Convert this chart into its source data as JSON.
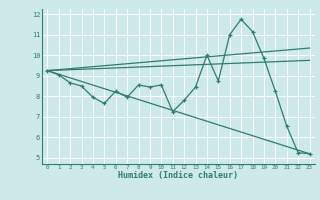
{
  "title": "",
  "xlabel": "Humidex (Indice chaleur)",
  "ylabel": "",
  "bg_color": "#cee9e9",
  "grid_color": "#ffffff",
  "line_color": "#2e7d6e",
  "xlim": [
    -0.5,
    23.5
  ],
  "ylim": [
    4.7,
    12.3
  ],
  "xticks": [
    0,
    1,
    2,
    3,
    4,
    5,
    6,
    7,
    8,
    9,
    10,
    11,
    12,
    13,
    14,
    15,
    16,
    17,
    18,
    19,
    20,
    21,
    22,
    23
  ],
  "yticks": [
    5,
    6,
    7,
    8,
    9,
    10,
    11,
    12
  ],
  "zigzag_x": [
    0,
    1,
    2,
    3,
    4,
    5,
    6,
    7,
    8,
    9,
    10,
    11,
    12,
    13,
    14,
    15,
    16,
    17,
    18,
    19,
    20,
    21,
    22,
    23
  ],
  "zigzag_y": [
    9.25,
    9.05,
    8.65,
    8.5,
    7.95,
    7.65,
    8.25,
    7.95,
    8.55,
    8.45,
    8.55,
    7.25,
    7.8,
    8.45,
    10.0,
    8.75,
    11.0,
    11.75,
    11.15,
    9.85,
    8.25,
    6.55,
    5.25,
    5.2
  ],
  "upper_line_x": [
    0,
    23
  ],
  "upper_line_y": [
    9.25,
    10.35
  ],
  "lower_line_x": [
    0,
    23
  ],
  "lower_line_y": [
    9.25,
    5.2
  ],
  "mid_line_x": [
    0,
    23
  ],
  "mid_line_y": [
    9.25,
    9.75
  ]
}
